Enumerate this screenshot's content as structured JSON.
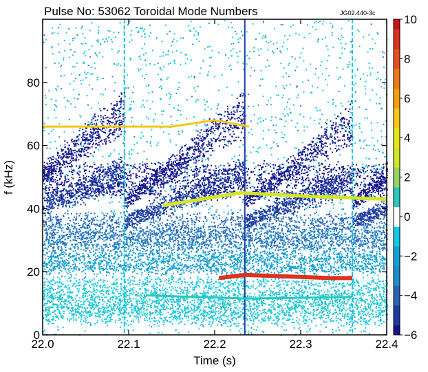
{
  "chart_data": {
    "type": "heatmap",
    "title": "Pulse No: 53062  Toroidal Mode Numbers",
    "reference_code": "JG02.440-3c",
    "xlabel": "Time (s)",
    "ylabel": "f (kHz)",
    "xlim": [
      22.0,
      22.4
    ],
    "ylim": [
      0,
      100
    ],
    "x_ticks": [
      "22.0",
      "22.1",
      "22.2",
      "22.3",
      "22.4"
    ],
    "y_ticks": [
      "0",
      "20",
      "40",
      "60",
      "80"
    ],
    "colorbar": {
      "range": [
        -6,
        10
      ],
      "ticks": [
        "10",
        "8",
        "6",
        "4",
        "2",
        "0",
        "−2",
        "−4",
        "−6"
      ],
      "colors": {
        "-6": "#14148c",
        "-5": "#1e3ca0",
        "-4": "#2864b4",
        "-3": "#1e8cc8",
        "-2": "#14a0d2",
        "-1": "#14c8e6",
        "0": "#ffffff",
        "1": "#28c8be",
        "2": "#96d264",
        "3": "#d2e628",
        "4": "#e6e614",
        "5": "#f5c814",
        "6": "#f5a00a",
        "7": "#f07814",
        "8": "#e6501e",
        "9": "#dc321e",
        "10": "#c81414"
      }
    },
    "sawtooth_crash_times_s": [
      22.095,
      22.235,
      22.36
    ],
    "features": [
      {
        "mode_n": -6,
        "description": "frequency chirp up after each crash, 40->60 kHz (upper branch)",
        "t": [
          22.0,
          22.095,
          22.11,
          22.235,
          22.24,
          22.36,
          22.365,
          22.4
        ],
        "f": [
          40,
          62,
          42,
          78,
          44,
          72,
          42,
          60
        ]
      },
      {
        "mode_n": -5,
        "description": "band near 45-55 kHz",
        "t": [
          22.0,
          22.09,
          22.13,
          22.23,
          22.25,
          22.35,
          22.38,
          22.4
        ],
        "f": [
          44,
          50,
          32,
          55,
          34,
          52,
          34,
          48
        ]
      },
      {
        "mode_n": -4,
        "description": "band near 30-35 kHz",
        "t": [
          22.0,
          22.4
        ],
        "f": [
          32,
          32
        ]
      },
      {
        "mode_n": -2,
        "description": "band near 20-25 kHz",
        "t": [
          22.0,
          22.1,
          22.2,
          22.36,
          22.4
        ],
        "f": [
          22,
          25,
          24,
          22,
          20
        ]
      },
      {
        "mode_n": -1,
        "description": "band near 12-18 kHz",
        "t": [
          22.0,
          22.4
        ],
        "f": [
          15,
          15
        ]
      },
      {
        "mode_n": 1,
        "description": "continuous line ~12 kHz",
        "t": [
          22.12,
          22.24,
          22.36
        ],
        "f": [
          12.5,
          11.5,
          12
        ]
      },
      {
        "mode_n": 5,
        "description": "continuous line ~66 kHz",
        "t": [
          22.0,
          22.1,
          22.15,
          22.2,
          22.24
        ],
        "f": [
          66,
          66,
          66,
          68,
          66
        ]
      },
      {
        "mode_n": 3,
        "description": "continuous line ~44 kHz",
        "t": [
          22.14,
          22.23,
          22.3,
          22.4
        ],
        "f": [
          41,
          45,
          44,
          43
        ]
      },
      {
        "mode_n": 9,
        "description": "short red bursts ~18 kHz before crashes",
        "t": [
          22.205,
          22.235,
          22.335,
          22.36
        ],
        "f": [
          18,
          19,
          18,
          18
        ]
      }
    ]
  }
}
